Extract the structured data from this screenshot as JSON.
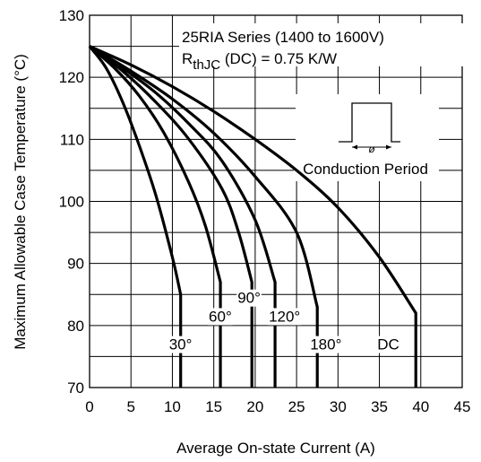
{
  "chart_data": {
    "type": "line",
    "xlabel": "Average On-state Current (A)",
    "ylabel": "Maximum Allowable Case Temperature (°C)",
    "xlim": [
      0,
      45
    ],
    "ylim": [
      70,
      130
    ],
    "x_ticks": [
      0,
      5,
      10,
      15,
      20,
      25,
      30,
      35,
      40,
      45
    ],
    "y_ticks": [
      70,
      80,
      90,
      100,
      110,
      120,
      130
    ],
    "x_tick_labels": [
      "0",
      "5",
      "10",
      "15",
      "20",
      "25",
      "30",
      "35",
      "40",
      "45"
    ],
    "y_tick_labels": [
      "70",
      "80",
      "90",
      "100",
      "110",
      "120",
      "130"
    ],
    "grid": true,
    "annotations": {
      "series_line1": "25RIA Series (1400 to 1600V)",
      "rth_main": "R",
      "rth_sub": "thJC",
      "rth_rest": " (DC) = 0.75 K/W",
      "conduction_label": "Conduction Period",
      "phi_symbol": "ø"
    },
    "series": [
      {
        "name": "30°",
        "x": [
          0,
          2,
          4,
          6,
          8,
          10,
          11,
          11
        ],
        "y": [
          125,
          121.5,
          116,
          109,
          101,
          91,
          85,
          70
        ]
      },
      {
        "name": "60°",
        "x": [
          0,
          3,
          6,
          9,
          12,
          14,
          15.8,
          15.8
        ],
        "y": [
          125,
          121.5,
          117,
          111,
          103,
          96,
          87,
          70
        ]
      },
      {
        "name": "90°",
        "x": [
          0,
          4,
          8,
          12,
          16,
          18,
          19.6,
          19.6
        ],
        "y": [
          125,
          121,
          116,
          110,
          102,
          95,
          87,
          70
        ]
      },
      {
        "name": "120°",
        "x": [
          0,
          4,
          8,
          12,
          16,
          20,
          22.4,
          22.4
        ],
        "y": [
          125,
          121.5,
          117.5,
          112.5,
          106.5,
          97,
          87,
          70
        ]
      },
      {
        "name": "180°",
        "x": [
          0,
          5,
          10,
          15,
          20,
          25,
          27.5,
          27.5
        ],
        "y": [
          125,
          121,
          116.5,
          111,
          104,
          95,
          83,
          70
        ]
      },
      {
        "name": "DC",
        "x": [
          0,
          5,
          10,
          15,
          20,
          25,
          30,
          35,
          39.4,
          39.4
        ],
        "y": [
          125,
          122,
          118.5,
          114.5,
          110,
          105,
          99,
          91,
          82,
          70
        ]
      }
    ]
  }
}
